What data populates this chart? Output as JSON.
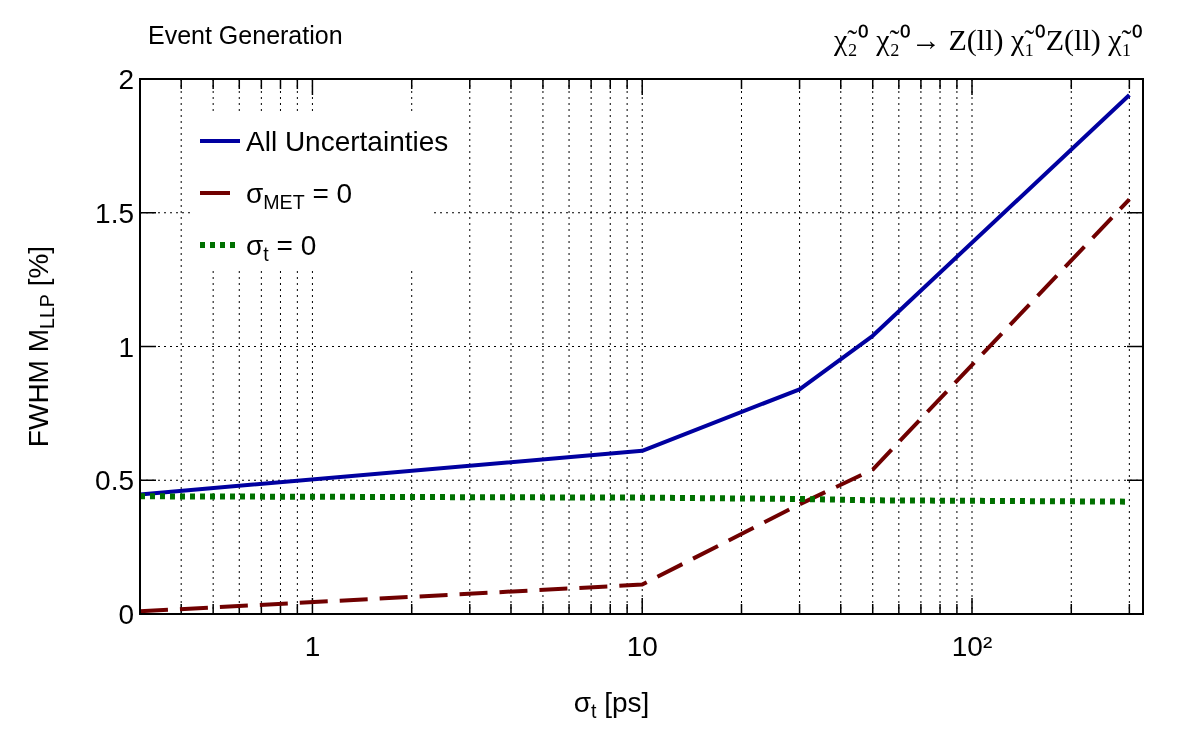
{
  "chart_data": {
    "type": "line",
    "title": "χ̃₂⁰ χ̃₂⁰→ Z(ll) χ̃₁⁰Z(ll) χ̃₁⁰",
    "subtitle": "Event Generation",
    "xlabel": "σ$_{t}$ [ps]",
    "ylabel": "FWHM M$_{LLP}$ [%]",
    "x": [
      0.3,
      10,
      30,
      50,
      300
    ],
    "series": [
      {
        "name": "All Uncertainties",
        "color": "#0000a0",
        "values": [
          0.447,
          0.61,
          0.84,
          1.04,
          1.94
        ],
        "line_style": "solid"
      },
      {
        "name": "σ$_{MET}$ = 0",
        "color": "#700000",
        "values": [
          0.01,
          0.11,
          0.41,
          0.54,
          1.55
        ],
        "line_style": "dashed"
      },
      {
        "name": "σ$_{t}$ = 0",
        "color": "#007000",
        "values": [
          0.44,
          0.435,
          0.43,
          0.425,
          0.42
        ],
        "line_style": "dotted"
      }
    ],
    "log": "x",
    "xlim": [
      0.3,
      330
    ],
    "ylim": [
      0,
      2
    ],
    "xticks": [
      {
        "value": 0.3,
        "label": null
      },
      {
        "value": 0.4,
        "label": null
      },
      {
        "value": 0.5,
        "label": null
      },
      {
        "value": 0.6,
        "label": null
      },
      {
        "value": 0.7,
        "label": null
      },
      {
        "value": 0.8,
        "label": null
      },
      {
        "value": 0.9,
        "label": null
      },
      1,
      {
        "value": 2,
        "label": null
      },
      {
        "value": 3,
        "label": null
      },
      {
        "value": 4,
        "label": null
      },
      {
        "value": 5,
        "label": null
      },
      {
        "value": 6,
        "label": null
      },
      {
        "value": 7,
        "label": null
      },
      {
        "value": 8,
        "label": null
      },
      {
        "value": 9,
        "label": null
      },
      10,
      {
        "value": 20,
        "label": null
      },
      {
        "value": 30,
        "label": null
      },
      {
        "value": 40,
        "label": null
      },
      {
        "value": 50,
        "label": null
      },
      {
        "value": 60,
        "label": null
      },
      {
        "value": 70,
        "label": null
      },
      {
        "value": 80,
        "label": null
      },
      {
        "value": 90,
        "label": null
      },
      {
        "value": 100,
        "label": "10²"
      },
      {
        "value": 200,
        "label": null
      },
      {
        "value": 300,
        "label": null
      }
    ],
    "yticks": [
      0,
      0.5,
      1,
      1.5,
      2
    ],
    "grid": true,
    "legend": "top left",
    "marker": "none"
  }
}
